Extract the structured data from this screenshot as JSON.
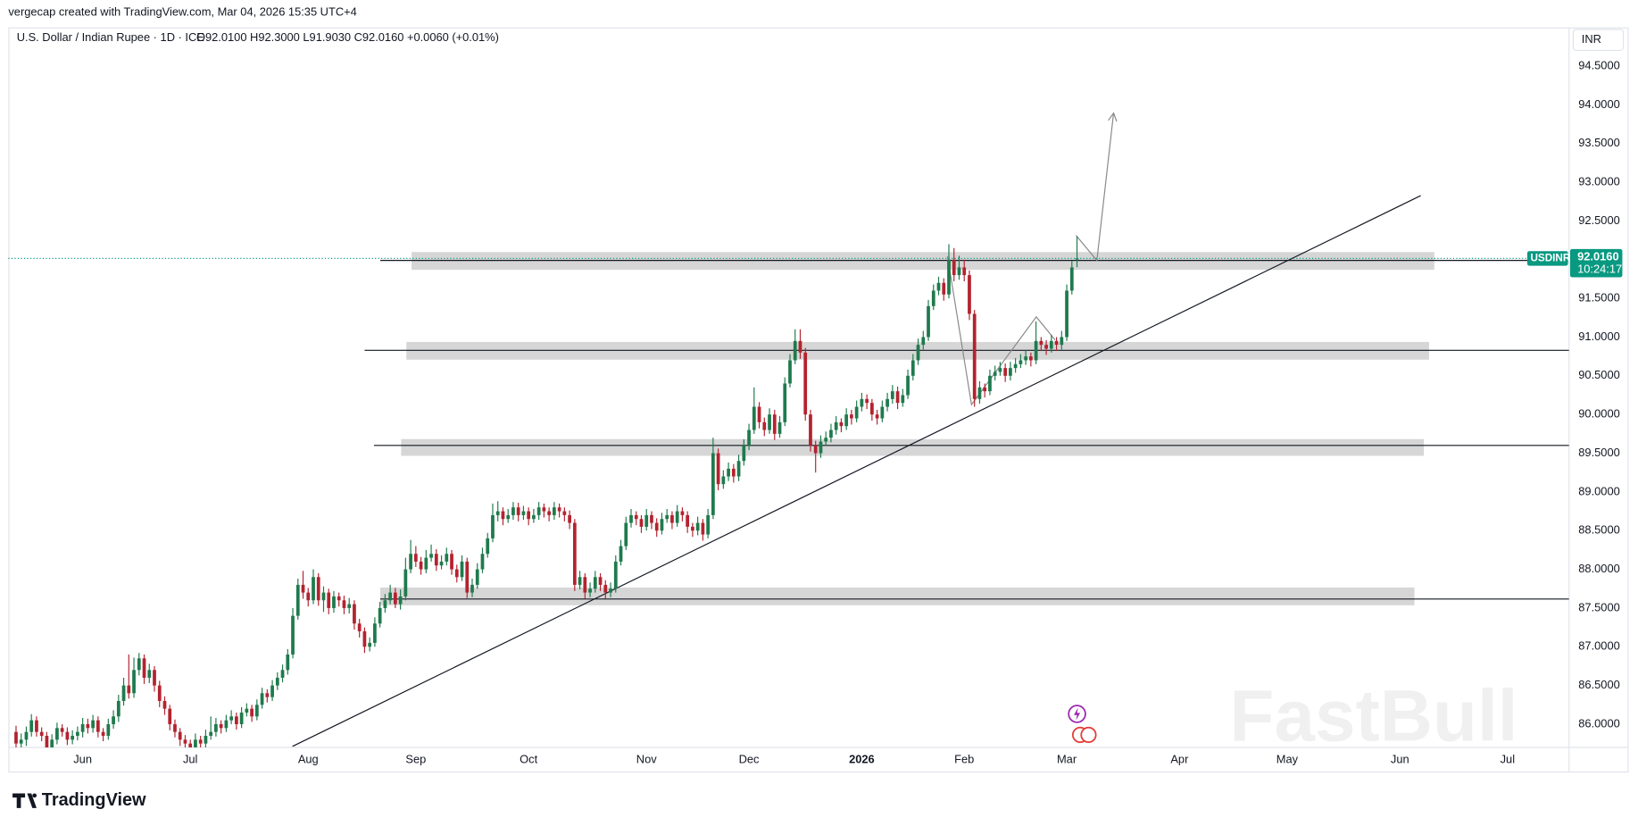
{
  "chart_data": {
    "type": "candlestick",
    "header": "vergecap created with TradingView.com, Mar 04, 2026 15:35 UTC+4",
    "symbol": "U.S. Dollar / Indian Rupee · 1D · ICE",
    "ohlc_text": "O92.0100 H92.3000 L91.9030 C92.0160 +0.0060 (+0.01%)",
    "currency": "INR",
    "ticker": "USDINR",
    "countdown": "10:24:17",
    "brand": "TradingView",
    "watermark": "FastBull",
    "up_color": "#1f7a4d",
    "down_color": "#b3232f",
    "grid": false,
    "last_price": {
      "value": 92.016,
      "label": "92.0160"
    },
    "xlim": [
      -1.5,
      303
    ],
    "ylim": [
      85.7,
      95.0
    ],
    "xticks": [
      {
        "value": 13,
        "label": "Jun"
      },
      {
        "value": 34,
        "label": "Jul"
      },
      {
        "value": 57,
        "label": "Aug"
      },
      {
        "value": 78,
        "label": "Sep"
      },
      {
        "value": 100,
        "label": "Oct"
      },
      {
        "value": 123,
        "label": "Nov"
      },
      {
        "value": 143,
        "label": "Dec"
      },
      {
        "value": 165,
        "label": "2026"
      },
      {
        "value": 185,
        "label": "Feb"
      },
      {
        "value": 205,
        "label": "Mar"
      },
      {
        "value": 227,
        "label": "Apr"
      },
      {
        "value": 248,
        "label": "May"
      },
      {
        "value": 270,
        "label": "Jun"
      },
      {
        "value": 291,
        "label": "Jul"
      }
    ],
    "yticks": [
      {
        "value": 86.0,
        "label": "86.0000"
      },
      {
        "value": 86.5,
        "label": "86.5000"
      },
      {
        "value": 87.0,
        "label": "87.0000"
      },
      {
        "value": 87.5,
        "label": "87.5000"
      },
      {
        "value": 88.0,
        "label": "88.0000"
      },
      {
        "value": 88.5,
        "label": "88.5000"
      },
      {
        "value": 89.0,
        "label": "89.0000"
      },
      {
        "value": 89.5,
        "label": "89.5000"
      },
      {
        "value": 90.0,
        "label": "90.0000"
      },
      {
        "value": 90.5,
        "label": "90.5000"
      },
      {
        "value": 91.0,
        "label": "91.0000"
      },
      {
        "value": 91.5,
        "label": "91.5000"
      },
      {
        "value": 92.0,
        "label": "92.0000"
      },
      {
        "value": 92.5,
        "label": "92.5000"
      },
      {
        "value": 93.0,
        "label": "93.0000"
      },
      {
        "value": 93.5,
        "label": "93.5000"
      },
      {
        "value": 94.0,
        "label": "94.0000"
      },
      {
        "value": 94.5,
        "label": "94.5000"
      }
    ],
    "ohlc": [
      [
        85.9,
        85.98,
        85.67,
        85.75
      ],
      [
        85.75,
        85.88,
        85.68,
        85.8
      ],
      [
        85.8,
        85.97,
        85.72,
        85.9
      ],
      [
        85.9,
        86.13,
        85.84,
        86.05
      ],
      [
        86.05,
        86.1,
        85.84,
        85.9
      ],
      [
        85.9,
        85.96,
        85.78,
        85.85
      ],
      [
        85.85,
        85.9,
        85.62,
        85.7
      ],
      [
        85.7,
        85.87,
        85.64,
        85.8
      ],
      [
        85.8,
        86.02,
        85.74,
        85.95
      ],
      [
        85.95,
        86.0,
        85.84,
        85.9
      ],
      [
        85.9,
        85.96,
        85.73,
        85.8
      ],
      [
        85.8,
        85.92,
        85.74,
        85.85
      ],
      [
        85.85,
        85.97,
        85.79,
        85.9
      ],
      [
        85.9,
        86.08,
        85.83,
        86.0
      ],
      [
        86.0,
        86.07,
        85.88,
        85.95
      ],
      [
        85.95,
        86.12,
        85.89,
        86.05
      ],
      [
        86.05,
        86.1,
        85.83,
        85.9
      ],
      [
        85.9,
        85.95,
        85.78,
        85.85
      ],
      [
        85.85,
        86.07,
        85.8,
        86.0
      ],
      [
        86.0,
        86.18,
        85.94,
        86.1
      ],
      [
        86.1,
        86.38,
        86.03,
        86.3
      ],
      [
        86.3,
        86.6,
        86.24,
        86.5
      ],
      [
        86.5,
        86.9,
        86.33,
        86.4
      ],
      [
        86.4,
        86.86,
        86.34,
        86.7
      ],
      [
        86.7,
        86.92,
        86.63,
        86.85
      ],
      [
        86.85,
        86.9,
        86.52,
        86.6
      ],
      [
        86.6,
        86.78,
        86.53,
        86.7
      ],
      [
        86.7,
        86.75,
        86.42,
        86.5
      ],
      [
        86.5,
        86.56,
        86.22,
        86.3
      ],
      [
        86.3,
        86.36,
        86.12,
        86.2
      ],
      [
        86.2,
        86.25,
        85.92,
        86.0
      ],
      [
        86.0,
        86.06,
        85.83,
        85.9
      ],
      [
        85.9,
        85.95,
        85.72,
        85.8
      ],
      [
        85.8,
        85.86,
        85.68,
        85.75
      ],
      [
        85.75,
        85.8,
        85.62,
        85.7
      ],
      [
        85.7,
        85.88,
        85.64,
        85.8
      ],
      [
        85.8,
        85.85,
        85.67,
        85.75
      ],
      [
        85.75,
        85.93,
        85.7,
        85.85
      ],
      [
        85.85,
        86.1,
        85.8,
        85.9
      ],
      [
        85.9,
        86.08,
        85.84,
        86.0
      ],
      [
        86.0,
        86.05,
        85.88,
        85.95
      ],
      [
        85.95,
        86.12,
        85.9,
        86.05
      ],
      [
        86.05,
        86.18,
        86.0,
        86.1
      ],
      [
        86.1,
        86.15,
        85.93,
        86.0
      ],
      [
        86.0,
        86.22,
        85.95,
        86.15
      ],
      [
        86.15,
        86.27,
        86.1,
        86.2
      ],
      [
        86.2,
        86.25,
        86.03,
        86.1
      ],
      [
        86.1,
        86.32,
        86.05,
        86.25
      ],
      [
        86.25,
        86.47,
        86.2,
        86.4
      ],
      [
        86.4,
        86.45,
        86.28,
        86.35
      ],
      [
        86.35,
        86.57,
        86.3,
        86.5
      ],
      [
        86.5,
        86.67,
        86.44,
        86.6
      ],
      [
        86.6,
        86.77,
        86.54,
        86.7
      ],
      [
        86.7,
        86.97,
        86.64,
        86.9
      ],
      [
        86.9,
        87.5,
        86.85,
        87.4
      ],
      [
        87.4,
        87.88,
        87.35,
        87.8
      ],
      [
        87.8,
        87.98,
        87.62,
        87.7
      ],
      [
        87.7,
        87.76,
        87.52,
        87.6
      ],
      [
        87.6,
        88.0,
        87.55,
        87.9
      ],
      [
        87.9,
        87.95,
        87.53,
        87.6
      ],
      [
        87.6,
        87.78,
        87.45,
        87.7
      ],
      [
        87.7,
        87.75,
        87.42,
        87.5
      ],
      [
        87.5,
        87.72,
        87.44,
        87.65
      ],
      [
        87.65,
        87.7,
        87.52,
        87.6
      ],
      [
        87.6,
        87.66,
        87.42,
        87.5
      ],
      [
        87.5,
        87.63,
        87.43,
        87.55
      ],
      [
        87.55,
        87.6,
        87.22,
        87.3
      ],
      [
        87.3,
        87.36,
        87.12,
        87.2
      ],
      [
        87.2,
        87.25,
        86.92,
        87.0
      ],
      [
        87.0,
        87.12,
        86.94,
        87.05
      ],
      [
        87.05,
        87.38,
        87.0,
        87.3
      ],
      [
        87.3,
        87.58,
        87.25,
        87.5
      ],
      [
        87.5,
        87.68,
        87.44,
        87.6
      ],
      [
        87.6,
        87.8,
        87.55,
        87.7
      ],
      [
        87.7,
        87.76,
        87.5,
        87.55
      ],
      [
        87.55,
        87.74,
        87.48,
        87.65
      ],
      [
        87.65,
        88.15,
        87.6,
        88.0
      ],
      [
        88.0,
        88.38,
        87.95,
        88.2
      ],
      [
        88.2,
        88.3,
        88.03,
        88.1
      ],
      [
        88.1,
        88.16,
        87.93,
        88.0
      ],
      [
        88.0,
        88.25,
        87.95,
        88.15
      ],
      [
        88.15,
        88.32,
        88.1,
        88.2
      ],
      [
        88.2,
        88.26,
        87.98,
        88.05
      ],
      [
        88.05,
        88.18,
        88.0,
        88.1
      ],
      [
        88.1,
        88.28,
        88.05,
        88.2
      ],
      [
        88.2,
        88.25,
        87.93,
        88.0
      ],
      [
        88.0,
        88.06,
        87.83,
        87.9
      ],
      [
        87.9,
        88.18,
        87.85,
        88.1
      ],
      [
        88.1,
        88.15,
        87.63,
        87.7
      ],
      [
        87.7,
        87.88,
        87.64,
        87.8
      ],
      [
        87.8,
        88.08,
        87.75,
        88.0
      ],
      [
        88.0,
        88.28,
        87.95,
        88.2
      ],
      [
        88.2,
        88.47,
        88.15,
        88.4
      ],
      [
        88.4,
        88.85,
        88.35,
        88.7
      ],
      [
        88.7,
        88.88,
        88.62,
        88.75
      ],
      [
        88.75,
        88.8,
        88.57,
        88.65
      ],
      [
        88.65,
        88.78,
        88.6,
        88.7
      ],
      [
        88.7,
        88.87,
        88.64,
        88.8
      ],
      [
        88.8,
        88.86,
        88.62,
        88.7
      ],
      [
        88.7,
        88.82,
        88.64,
        88.75
      ],
      [
        88.75,
        88.8,
        88.57,
        88.65
      ],
      [
        88.65,
        88.78,
        88.6,
        88.7
      ],
      [
        88.7,
        88.87,
        88.64,
        88.8
      ],
      [
        88.8,
        88.85,
        88.67,
        88.75
      ],
      [
        88.75,
        88.8,
        88.62,
        88.7
      ],
      [
        88.7,
        88.87,
        88.64,
        88.8
      ],
      [
        88.8,
        88.85,
        88.67,
        88.75
      ],
      [
        88.75,
        88.8,
        88.62,
        88.7
      ],
      [
        88.7,
        88.76,
        88.52,
        88.6
      ],
      [
        88.6,
        88.65,
        87.72,
        87.8
      ],
      [
        87.8,
        87.98,
        87.74,
        87.9
      ],
      [
        87.9,
        87.95,
        87.62,
        87.7
      ],
      [
        87.7,
        87.83,
        87.64,
        87.75
      ],
      [
        87.75,
        87.98,
        87.7,
        87.9
      ],
      [
        87.9,
        87.95,
        87.72,
        87.8
      ],
      [
        87.8,
        87.86,
        87.62,
        87.7
      ],
      [
        87.7,
        87.83,
        87.64,
        87.75
      ],
      [
        87.75,
        88.18,
        87.7,
        88.1
      ],
      [
        88.1,
        88.38,
        88.05,
        88.3
      ],
      [
        88.3,
        88.68,
        88.25,
        88.6
      ],
      [
        88.6,
        88.78,
        88.54,
        88.7
      ],
      [
        88.7,
        88.75,
        88.57,
        88.65
      ],
      [
        88.65,
        88.7,
        88.47,
        88.55
      ],
      [
        88.55,
        88.78,
        88.5,
        88.7
      ],
      [
        88.7,
        88.75,
        88.52,
        88.6
      ],
      [
        88.6,
        88.66,
        88.42,
        88.5
      ],
      [
        88.5,
        88.73,
        88.45,
        88.65
      ],
      [
        88.65,
        88.78,
        88.6,
        88.7
      ],
      [
        88.7,
        88.75,
        88.52,
        88.6
      ],
      [
        88.6,
        88.83,
        88.55,
        88.75
      ],
      [
        88.75,
        88.8,
        88.62,
        88.7
      ],
      [
        88.7,
        88.75,
        88.47,
        88.55
      ],
      [
        88.55,
        88.6,
        88.42,
        88.5
      ],
      [
        88.5,
        88.68,
        88.44,
        88.6
      ],
      [
        88.6,
        88.65,
        88.37,
        88.45
      ],
      [
        88.45,
        88.78,
        88.4,
        88.7
      ],
      [
        88.7,
        89.7,
        88.65,
        89.5
      ],
      [
        89.5,
        89.56,
        89.02,
        89.1
      ],
      [
        89.1,
        89.28,
        89.04,
        89.2
      ],
      [
        89.2,
        89.38,
        89.14,
        89.3
      ],
      [
        89.3,
        89.36,
        89.12,
        89.2
      ],
      [
        89.2,
        89.48,
        89.14,
        89.4
      ],
      [
        89.4,
        89.68,
        89.34,
        89.6
      ],
      [
        89.6,
        89.88,
        89.54,
        89.8
      ],
      [
        89.8,
        90.35,
        89.75,
        90.1
      ],
      [
        90.1,
        90.16,
        89.82,
        89.9
      ],
      [
        89.9,
        89.96,
        89.72,
        89.8
      ],
      [
        89.8,
        90.08,
        89.75,
        90.0
      ],
      [
        90.0,
        90.06,
        89.67,
        89.75
      ],
      [
        89.75,
        89.98,
        89.7,
        89.9
      ],
      [
        89.9,
        90.48,
        89.85,
        90.4
      ],
      [
        90.4,
        90.78,
        90.35,
        90.7
      ],
      [
        90.7,
        91.1,
        90.65,
        90.95
      ],
      [
        90.95,
        91.1,
        90.72,
        90.8
      ],
      [
        90.8,
        90.86,
        89.92,
        90.0
      ],
      [
        90.0,
        90.06,
        89.52,
        89.6
      ],
      [
        89.6,
        89.66,
        89.25,
        89.5
      ],
      [
        89.5,
        89.73,
        89.44,
        89.65
      ],
      [
        89.65,
        89.78,
        89.6,
        89.7
      ],
      [
        89.7,
        89.88,
        89.64,
        89.8
      ],
      [
        89.8,
        89.98,
        89.74,
        89.9
      ],
      [
        89.9,
        89.95,
        89.77,
        89.85
      ],
      [
        89.85,
        90.08,
        89.8,
        90.0
      ],
      [
        90.0,
        90.06,
        89.87,
        89.95
      ],
      [
        89.95,
        90.18,
        89.9,
        90.1
      ],
      [
        90.1,
        90.28,
        90.04,
        90.2
      ],
      [
        90.2,
        90.26,
        90.07,
        90.15
      ],
      [
        90.15,
        90.2,
        89.92,
        90.0
      ],
      [
        90.0,
        90.06,
        89.87,
        89.95
      ],
      [
        89.95,
        90.18,
        89.9,
        90.1
      ],
      [
        90.1,
        90.28,
        90.04,
        90.2
      ],
      [
        90.2,
        90.38,
        90.14,
        90.3
      ],
      [
        90.3,
        90.36,
        90.07,
        90.15
      ],
      [
        90.15,
        90.33,
        90.1,
        90.25
      ],
      [
        90.25,
        90.58,
        90.2,
        90.5
      ],
      [
        90.5,
        90.78,
        90.44,
        90.7
      ],
      [
        90.7,
        90.98,
        90.64,
        90.9
      ],
      [
        90.9,
        91.08,
        90.84,
        91.0
      ],
      [
        91.0,
        91.48,
        90.95,
        91.4
      ],
      [
        91.4,
        91.68,
        91.35,
        91.6
      ],
      [
        91.6,
        91.78,
        91.54,
        91.7
      ],
      [
        91.7,
        91.76,
        91.47,
        91.55
      ],
      [
        91.55,
        92.2,
        91.5,
        92.0
      ],
      [
        92.0,
        92.15,
        91.72,
        91.8
      ],
      [
        91.8,
        92.05,
        91.74,
        91.9
      ],
      [
        91.9,
        92.0,
        91.72,
        91.8
      ],
      [
        91.8,
        91.86,
        91.22,
        91.3
      ],
      [
        91.3,
        91.35,
        90.1,
        90.2
      ],
      [
        90.2,
        90.43,
        90.14,
        90.35
      ],
      [
        90.35,
        90.4,
        90.22,
        90.3
      ],
      [
        90.3,
        90.58,
        90.25,
        90.5
      ],
      [
        90.5,
        90.63,
        90.44,
        90.55
      ],
      [
        90.55,
        90.68,
        90.5,
        90.6
      ],
      [
        90.6,
        90.66,
        90.42,
        90.5
      ],
      [
        90.5,
        90.68,
        90.44,
        90.6
      ],
      [
        90.6,
        90.73,
        90.54,
        90.65
      ],
      [
        90.65,
        90.78,
        90.6,
        90.7
      ],
      [
        90.7,
        90.83,
        90.64,
        90.75
      ],
      [
        90.75,
        90.8,
        90.62,
        90.7
      ],
      [
        90.7,
        91.2,
        90.65,
        90.95
      ],
      [
        90.95,
        91.0,
        90.82,
        90.9
      ],
      [
        90.9,
        90.96,
        90.77,
        90.85
      ],
      [
        90.85,
        91.03,
        90.8,
        90.95
      ],
      [
        90.95,
        91.0,
        90.82,
        90.9
      ],
      [
        90.9,
        91.08,
        90.84,
        91.0
      ],
      [
        91.0,
        91.68,
        90.95,
        91.6
      ],
      [
        91.6,
        91.98,
        91.55,
        91.9
      ],
      [
        92.01,
        92.3,
        91.903,
        92.016
      ]
    ]
  }
}
